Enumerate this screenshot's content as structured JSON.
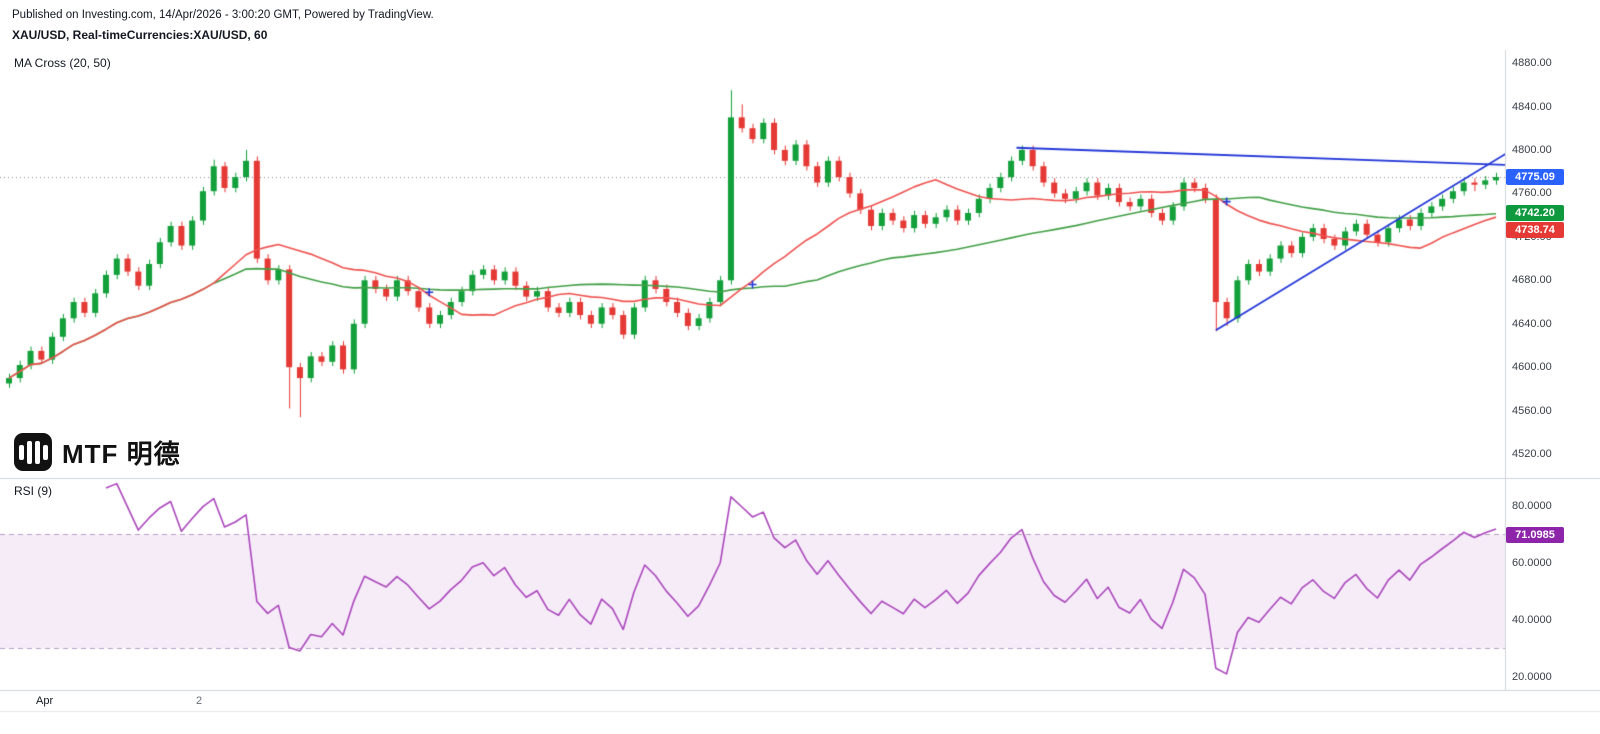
{
  "header": {
    "published_line": "Published on Investing.com, 14/Apr/2026 - 3:00:20 GMT, Powered by TradingView.",
    "symbol_line": "XAU/USD, Real-timeCurrencies:XAU/USD, 60"
  },
  "main_chart": {
    "indicator_label": "MA Cross (20, 50)",
    "logo_text": "MTF 明德",
    "price_axis_labels": [
      "4880.00",
      "4840.00",
      "4800.00",
      "4760.00",
      "4720.00",
      "4680.00",
      "4640.00",
      "4600.00",
      "4560.00",
      "4520.00"
    ],
    "badges": {
      "last_price": {
        "text": "4775.09",
        "color": "#2962ff"
      },
      "ma_green": {
        "text": "4742.20",
        "color": "#0f993e"
      },
      "ma_red": {
        "text": "4738.74",
        "color": "#e53935"
      }
    }
  },
  "rsi_pane": {
    "label": "RSI (9)",
    "axis_labels": [
      "80.0000",
      "60.0000",
      "40.0000",
      "20.0000"
    ],
    "badge": {
      "text": "71.0985",
      "color": "#8e24aa"
    }
  },
  "time_axis": {
    "labels": [
      {
        "text": "Apr"
      },
      {
        "text": "2"
      }
    ]
  },
  "chart_data": {
    "type": "candlestick",
    "title": "XAU/USD, 60",
    "symbol": "XAU/USD",
    "interval": "60",
    "price_range": {
      "min": 4498,
      "max": 4892
    },
    "last_price": 4775.09,
    "colors": {
      "up": "#13a03b",
      "down": "#e53935",
      "ma_fast": "#ef5350",
      "ma_slow": "#43a047",
      "trendline": "#2337d8",
      "cross_marker": "#2337d8",
      "rsi_line": "#ab47bc",
      "rsi_band_fill": "rgba(171,71,188,0.10)",
      "rsi_band_line": "rgba(130,90,150,0.55)",
      "last_price_line": "#8a8e98",
      "separator": "#d1d4dc"
    },
    "indicators": {
      "ma_cross": {
        "fast": 20,
        "slow": 50
      },
      "rsi": {
        "period": 9,
        "upper_band": 70,
        "lower_band": 30,
        "last": 71.0985,
        "scale_max": 88.4,
        "scale_min": 16.1
      }
    },
    "trendlines": [
      {
        "from": [
          93.5,
          4802
        ],
        "to": [
          139.5,
          4786
        ]
      },
      {
        "from": [
          112,
          4634
        ],
        "to": [
          139.5,
          4800
        ]
      }
    ],
    "candles": [
      [
        4585,
        4594,
        4581,
        4590
      ],
      [
        4590,
        4606,
        4586,
        4602
      ],
      [
        4602,
        4619,
        4598,
        4615
      ],
      [
        4615,
        4619,
        4603,
        4607
      ],
      [
        4607,
        4632,
        4603,
        4628
      ],
      [
        4628,
        4649,
        4624,
        4645
      ],
      [
        4645,
        4664,
        4641,
        4660
      ],
      [
        4660,
        4664,
        4646,
        4650
      ],
      [
        4650,
        4672,
        4646,
        4668
      ],
      [
        4668,
        4689,
        4664,
        4685
      ],
      [
        4685,
        4704,
        4681,
        4700
      ],
      [
        4700,
        4704,
        4684,
        4688
      ],
      [
        4688,
        4692,
        4671,
        4675
      ],
      [
        4675,
        4699,
        4671,
        4695
      ],
      [
        4695,
        4719,
        4691,
        4715
      ],
      [
        4715,
        4734,
        4711,
        4730
      ],
      [
        4730,
        4734,
        4708,
        4712
      ],
      [
        4712,
        4739,
        4708,
        4735
      ],
      [
        4735,
        4766,
        4731,
        4762
      ],
      [
        4762,
        4791,
        4758,
        4785
      ],
      [
        4785,
        4789,
        4761,
        4765
      ],
      [
        4765,
        4779,
        4761,
        4775
      ],
      [
        4775,
        4800,
        4771,
        4790
      ],
      [
        4790,
        4794,
        4696,
        4700
      ],
      [
        4700,
        4704,
        4676,
        4680
      ],
      [
        4680,
        4694,
        4676,
        4690
      ],
      [
        4690,
        4694,
        4562,
        4600
      ],
      [
        4600,
        4604,
        4554,
        4590
      ],
      [
        4590,
        4614,
        4586,
        4610
      ],
      [
        4610,
        4614,
        4601,
        4605
      ],
      [
        4605,
        4624,
        4601,
        4620
      ],
      [
        4620,
        4624,
        4594,
        4598
      ],
      [
        4598,
        4644,
        4594,
        4640
      ],
      [
        4640,
        4684,
        4636,
        4680
      ],
      [
        4680,
        4684,
        4668,
        4672
      ],
      [
        4672,
        4676,
        4661,
        4665
      ],
      [
        4665,
        4684,
        4661,
        4680
      ],
      [
        4680,
        4684,
        4666,
        4670
      ],
      [
        4670,
        4674,
        4651,
        4655
      ],
      [
        4655,
        4659,
        4636,
        4640
      ],
      [
        4640,
        4652,
        4636,
        4648
      ],
      [
        4648,
        4664,
        4644,
        4660
      ],
      [
        4660,
        4674,
        4656,
        4670
      ],
      [
        4670,
        4689,
        4666,
        4685
      ],
      [
        4685,
        4694,
        4681,
        4690
      ],
      [
        4690,
        4694,
        4676,
        4680
      ],
      [
        4680,
        4692,
        4676,
        4688
      ],
      [
        4688,
        4692,
        4671,
        4675
      ],
      [
        4675,
        4679,
        4661,
        4665
      ],
      [
        4665,
        4674,
        4661,
        4670
      ],
      [
        4670,
        4674,
        4651,
        4655
      ],
      [
        4655,
        4659,
        4646,
        4650
      ],
      [
        4650,
        4664,
        4646,
        4660
      ],
      [
        4660,
        4664,
        4644,
        4648
      ],
      [
        4648,
        4652,
        4636,
        4640
      ],
      [
        4640,
        4659,
        4636,
        4655
      ],
      [
        4655,
        4659,
        4644,
        4648
      ],
      [
        4648,
        4652,
        4626,
        4630
      ],
      [
        4630,
        4659,
        4626,
        4655
      ],
      [
        4655,
        4684,
        4651,
        4680
      ],
      [
        4680,
        4684,
        4668,
        4672
      ],
      [
        4672,
        4676,
        4656,
        4660
      ],
      [
        4660,
        4664,
        4646,
        4650
      ],
      [
        4650,
        4654,
        4634,
        4638
      ],
      [
        4638,
        4649,
        4634,
        4645
      ],
      [
        4645,
        4664,
        4641,
        4660
      ],
      [
        4660,
        4684,
        4656,
        4680
      ],
      [
        4680,
        4855,
        4676,
        4830
      ],
      [
        4830,
        4842,
        4816,
        4820
      ],
      [
        4820,
        4824,
        4806,
        4810
      ],
      [
        4810,
        4829,
        4806,
        4825
      ],
      [
        4825,
        4829,
        4796,
        4800
      ],
      [
        4800,
        4804,
        4786,
        4790
      ],
      [
        4790,
        4809,
        4786,
        4805
      ],
      [
        4805,
        4809,
        4781,
        4785
      ],
      [
        4785,
        4789,
        4766,
        4770
      ],
      [
        4770,
        4794,
        4766,
        4790
      ],
      [
        4790,
        4794,
        4771,
        4775
      ],
      [
        4775,
        4779,
        4756,
        4760
      ],
      [
        4760,
        4764,
        4741,
        4745
      ],
      [
        4745,
        4749,
        4726,
        4730
      ],
      [
        4730,
        4746,
        4726,
        4742
      ],
      [
        4742,
        4746,
        4731,
        4735
      ],
      [
        4735,
        4739,
        4724,
        4728
      ],
      [
        4728,
        4744,
        4724,
        4740
      ],
      [
        4740,
        4744,
        4728,
        4732
      ],
      [
        4732,
        4742,
        4728,
        4738
      ],
      [
        4738,
        4749,
        4734,
        4745
      ],
      [
        4745,
        4749,
        4731,
        4735
      ],
      [
        4735,
        4746,
        4731,
        4742
      ],
      [
        4742,
        4759,
        4738,
        4755
      ],
      [
        4755,
        4769,
        4751,
        4765
      ],
      [
        4765,
        4779,
        4761,
        4775
      ],
      [
        4775,
        4794,
        4771,
        4790
      ],
      [
        4790,
        4804,
        4786,
        4800
      ],
      [
        4800,
        4804,
        4781,
        4785
      ],
      [
        4785,
        4789,
        4766,
        4770
      ],
      [
        4770,
        4774,
        4756,
        4760
      ],
      [
        4760,
        4764,
        4751,
        4755
      ],
      [
        4755,
        4766,
        4751,
        4762
      ],
      [
        4762,
        4774,
        4758,
        4770
      ],
      [
        4770,
        4774,
        4754,
        4758
      ],
      [
        4758,
        4769,
        4754,
        4765
      ],
      [
        4765,
        4769,
        4748,
        4752
      ],
      [
        4752,
        4756,
        4744,
        4748
      ],
      [
        4748,
        4759,
        4744,
        4755
      ],
      [
        4755,
        4759,
        4738,
        4742
      ],
      [
        4742,
        4746,
        4731,
        4735
      ],
      [
        4735,
        4752,
        4731,
        4748
      ],
      [
        4748,
        4774,
        4744,
        4770
      ],
      [
        4770,
        4774,
        4761,
        4765
      ],
      [
        4765,
        4769,
        4751,
        4755
      ],
      [
        4755,
        4759,
        4633,
        4660
      ],
      [
        4660,
        4664,
        4638,
        4645
      ],
      [
        4645,
        4684,
        4641,
        4680
      ],
      [
        4680,
        4699,
        4676,
        4695
      ],
      [
        4695,
        4699,
        4684,
        4688
      ],
      [
        4688,
        4704,
        4684,
        4700
      ],
      [
        4700,
        4716,
        4696,
        4712
      ],
      [
        4712,
        4716,
        4701,
        4705
      ],
      [
        4705,
        4724,
        4701,
        4720
      ],
      [
        4720,
        4732,
        4716,
        4728
      ],
      [
        4728,
        4732,
        4714,
        4718
      ],
      [
        4718,
        4722,
        4708,
        4712
      ],
      [
        4712,
        4729,
        4708,
        4725
      ],
      [
        4725,
        4736,
        4721,
        4732
      ],
      [
        4732,
        4736,
        4718,
        4722
      ],
      [
        4722,
        4726,
        4711,
        4715
      ],
      [
        4715,
        4732,
        4711,
        4728
      ],
      [
        4728,
        4740,
        4724,
        4736
      ],
      [
        4736,
        4740,
        4726,
        4730
      ],
      [
        4730,
        4746,
        4726,
        4742
      ],
      [
        4742,
        4752,
        4738,
        4748
      ],
      [
        4748,
        4759,
        4744,
        4755
      ],
      [
        4755,
        4766,
        4751,
        4762
      ],
      [
        4762,
        4774,
        4758,
        4770
      ],
      [
        4770,
        4774,
        4762,
        4768
      ],
      [
        4768,
        4776,
        4764,
        4772
      ],
      [
        4772,
        4779,
        4768,
        4775.09
      ]
    ]
  }
}
